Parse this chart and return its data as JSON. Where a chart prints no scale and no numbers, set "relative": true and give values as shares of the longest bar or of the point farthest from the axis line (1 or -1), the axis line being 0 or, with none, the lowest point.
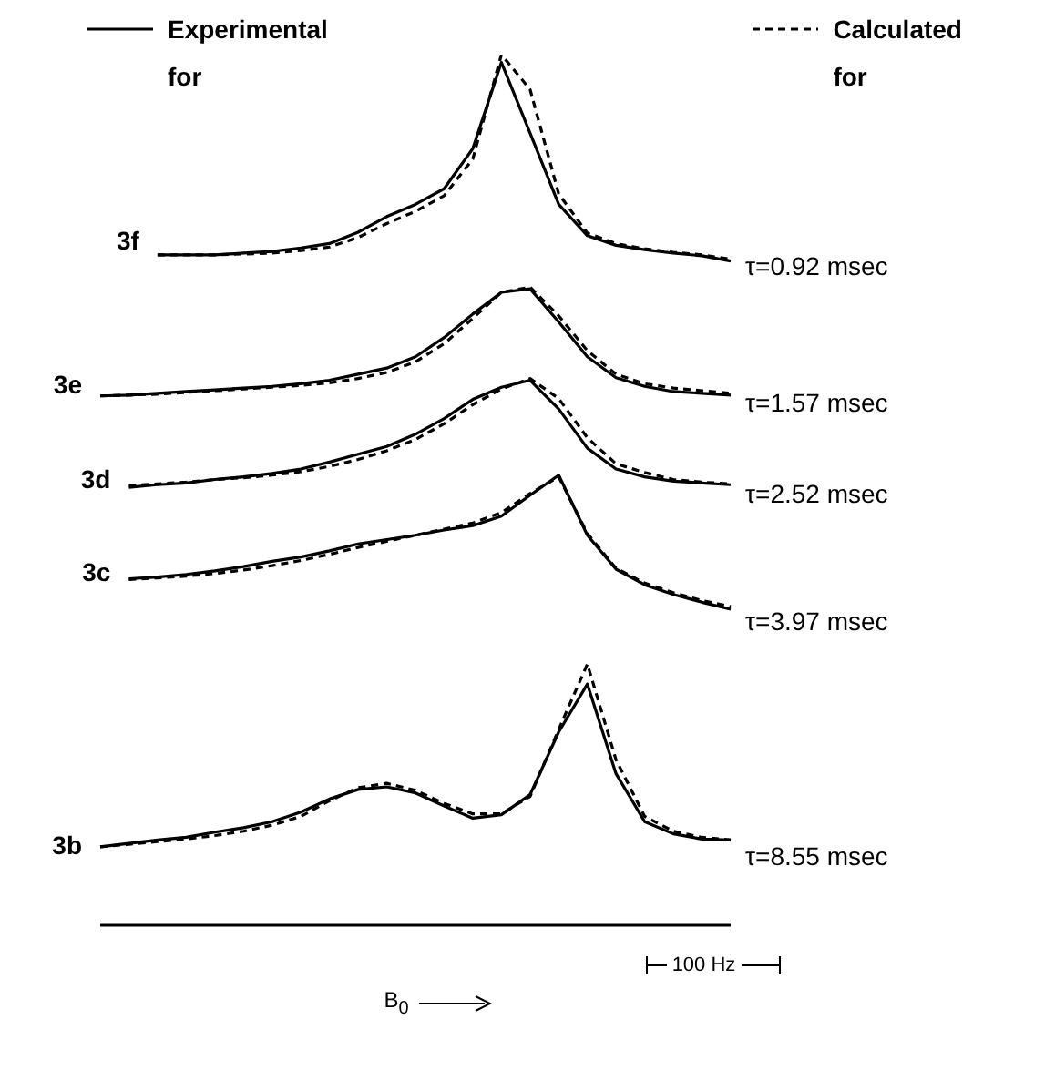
{
  "chart_data": {
    "type": "line",
    "relative": true,
    "xlabel": "B$_{0}$",
    "legend": "top",
    "categories": [
      null,
      null,
      null,
      null,
      null,
      null,
      null,
      null,
      null,
      null,
      null,
      null,
      null,
      null,
      null,
      null,
      null,
      null,
      null,
      null,
      null,
      null,
      null
    ],
    "annotations": [
      "3f",
      "3e",
      "3d",
      "3c",
      "3b",
      "τ=0.92 msec",
      "τ=1.57 msec",
      "τ=2.52 msec",
      "τ=3.97 msec",
      "τ=8.55 msec",
      "for",
      "for",
      "100 Hz"
    ],
    "series": [
      {
        "name": "Experimental",
        "color": "#000000",
        "line_style": "solid",
        "values": [
          null,
          null,
          0.77,
          0.77,
          0.77,
          0.772,
          0.774,
          0.778,
          0.783,
          0.796,
          0.814,
          0.828,
          0.846,
          0.892,
          0.991,
          0.91,
          0.828,
          0.792,
          0.781,
          0.776,
          0.772,
          0.769,
          0.763
        ]
      },
      {
        "name": "Calculated",
        "color": "#000000",
        "line_style": "dashed",
        "values": [
          null,
          null,
          0.77,
          0.77,
          0.77,
          0.771,
          0.772,
          0.775,
          0.779,
          0.79,
          0.806,
          0.82,
          0.838,
          0.88,
          1,
          0.96,
          0.84,
          0.795,
          0.783,
          0.777,
          0.773,
          0.77,
          0.765
        ]
      },
      {
        "color": "#000000",
        "line_style": "solid",
        "values": [
          0.608,
          0.609,
          0.611,
          0.613,
          0.615,
          0.617,
          0.619,
          0.622,
          0.626,
          0.633,
          0.64,
          0.653,
          0.675,
          0.702,
          0.727,
          0.731,
          0.693,
          0.653,
          0.629,
          0.619,
          0.613,
          0.611,
          0.609
        ]
      },
      {
        "color": "#000000",
        "line_style": "dashed",
        "values": [
          0.608,
          0.609,
          0.61,
          0.612,
          0.614,
          0.616,
          0.618,
          0.62,
          0.623,
          0.628,
          0.635,
          0.647,
          0.668,
          0.697,
          0.727,
          0.733,
          0.7,
          0.66,
          0.633,
          0.622,
          0.617,
          0.614,
          0.611
        ]
      },
      {
        "color": "#000000",
        "line_style": "solid",
        "values": [
          null,
          0.503,
          0.506,
          0.508,
          0.512,
          0.515,
          0.519,
          0.524,
          0.532,
          0.541,
          0.55,
          0.564,
          0.582,
          0.604,
          0.618,
          0.626,
          0.593,
          0.548,
          0.524,
          0.515,
          0.51,
          0.508,
          0.506
        ]
      },
      {
        "color": "#000000",
        "line_style": "dashed",
        "values": [
          null,
          0.505,
          0.507,
          0.509,
          0.512,
          0.514,
          0.517,
          0.521,
          0.527,
          0.535,
          0.545,
          0.558,
          0.576,
          0.598,
          0.616,
          0.628,
          0.605,
          0.56,
          0.53,
          0.52,
          0.512,
          0.509,
          0.507
        ]
      },
      {
        "color": "#000000",
        "line_style": "solid",
        "values": [
          null,
          0.398,
          0.4,
          0.403,
          0.407,
          0.412,
          0.418,
          0.423,
          0.43,
          0.438,
          0.443,
          0.448,
          0.454,
          0.459,
          0.47,
          0.494,
          0.517,
          0.448,
          0.409,
          0.391,
          0.38,
          0.371,
          0.363
        ]
      },
      {
        "color": "#000000",
        "line_style": "dashed",
        "values": [
          null,
          0.397,
          0.399,
          0.401,
          0.404,
          0.408,
          0.413,
          0.419,
          0.426,
          0.434,
          0.441,
          0.448,
          0.455,
          0.462,
          0.474,
          0.496,
          0.515,
          0.45,
          0.41,
          0.393,
          0.382,
          0.373,
          0.366
        ]
      },
      {
        "color": "#000000",
        "line_style": "solid",
        "values": [
          0.09,
          0.094,
          0.098,
          0.101,
          0.107,
          0.112,
          0.119,
          0.13,
          0.145,
          0.156,
          0.159,
          0.152,
          0.137,
          0.123,
          0.127,
          0.15,
          0.222,
          0.277,
          0.174,
          0.119,
          0.105,
          0.099,
          0.098
        ]
      },
      {
        "color": "#000000",
        "line_style": "dashed",
        "values": [
          0.09,
          0.093,
          0.096,
          0.099,
          0.103,
          0.108,
          0.115,
          0.125,
          0.143,
          0.158,
          0.163,
          0.155,
          0.14,
          0.128,
          0.128,
          0.148,
          0.225,
          0.3,
          0.19,
          0.125,
          0.108,
          0.101,
          0.098
        ]
      }
    ]
  }
}
